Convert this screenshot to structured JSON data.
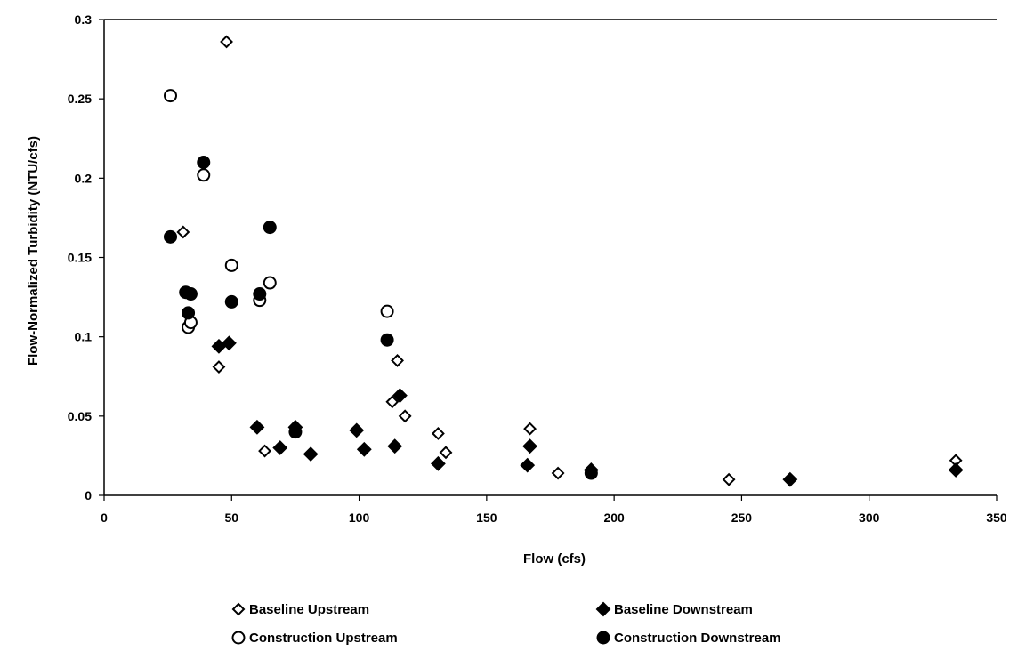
{
  "chart_data": {
    "type": "scatter",
    "title": "",
    "xlabel": "Flow (cfs)",
    "ylabel": "Flow-Normalized Turbidity (NTU/cfs)",
    "xlim": [
      0,
      350
    ],
    "ylim": [
      0,
      0.3
    ],
    "xticks": [
      "0",
      "50",
      "100",
      "150",
      "200",
      "250",
      "300",
      "350"
    ],
    "yticks": [
      "0",
      "0.05",
      "0.1",
      "0.15",
      "0.2",
      "0.25",
      "0.3"
    ],
    "grid": false,
    "legend_position": "bottom",
    "series": [
      {
        "name": "Baseline Upstream",
        "marker": "diamond-open",
        "points": [
          [
            48,
            0.286
          ],
          [
            31,
            0.166
          ],
          [
            45,
            0.081
          ],
          [
            63,
            0.028
          ],
          [
            113,
            0.059
          ],
          [
            115,
            0.085
          ],
          [
            118,
            0.05
          ],
          [
            131,
            0.039
          ],
          [
            134,
            0.027
          ],
          [
            167,
            0.042
          ],
          [
            178,
            0.014
          ],
          [
            191,
            0.014
          ],
          [
            245,
            0.01
          ],
          [
            334,
            0.022
          ]
        ]
      },
      {
        "name": "Baseline Downstream",
        "marker": "diamond-filled",
        "points": [
          [
            45,
            0.094
          ],
          [
            49,
            0.096
          ],
          [
            60,
            0.043
          ],
          [
            69,
            0.03
          ],
          [
            75,
            0.043
          ],
          [
            81,
            0.026
          ],
          [
            99,
            0.041
          ],
          [
            102,
            0.029
          ],
          [
            114,
            0.031
          ],
          [
            116,
            0.063
          ],
          [
            131,
            0.02
          ],
          [
            166,
            0.019
          ],
          [
            167,
            0.031
          ],
          [
            191,
            0.016
          ],
          [
            269,
            0.01
          ],
          [
            334,
            0.016
          ]
        ]
      },
      {
        "name": "Construction Upstream",
        "marker": "circle-open",
        "points": [
          [
            26,
            0.252
          ],
          [
            39,
            0.202
          ],
          [
            50,
            0.145
          ],
          [
            61,
            0.123
          ],
          [
            65,
            0.134
          ],
          [
            33,
            0.106
          ],
          [
            34,
            0.109
          ],
          [
            111,
            0.116
          ]
        ]
      },
      {
        "name": "Construction Downstream",
        "marker": "circle-filled",
        "points": [
          [
            26,
            0.163
          ],
          [
            39,
            0.21
          ],
          [
            32,
            0.128
          ],
          [
            34,
            0.127
          ],
          [
            33,
            0.115
          ],
          [
            50,
            0.122
          ],
          [
            61,
            0.127
          ],
          [
            65,
            0.169
          ],
          [
            75,
            0.04
          ],
          [
            111,
            0.098
          ],
          [
            191,
            0.014
          ]
        ]
      }
    ]
  }
}
